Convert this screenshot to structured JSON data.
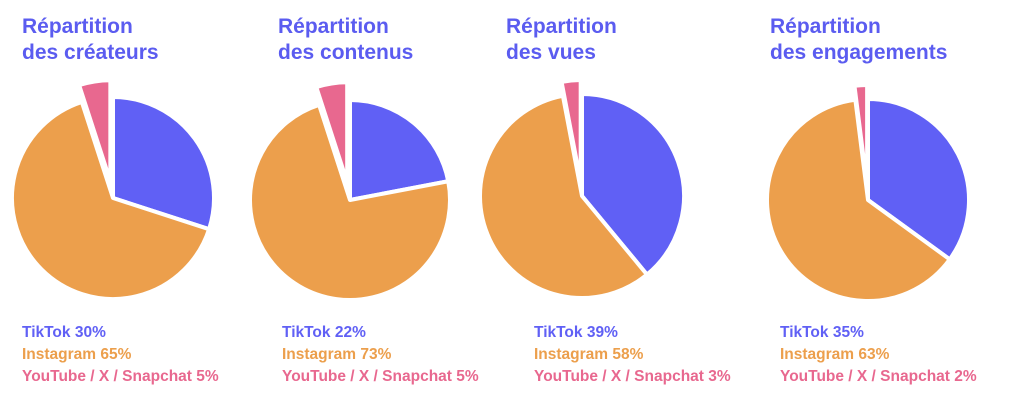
{
  "colors": {
    "tiktok": "#6060f5",
    "instagram": "#ec9f4c",
    "other": "#e8688f",
    "title": "#5b5cf0"
  },
  "chart_data": [
    {
      "type": "pie",
      "title_line1": "Répartition",
      "title_line2": "des créateurs",
      "slices": [
        {
          "name": "TikTok",
          "value": 30
        },
        {
          "name": "Instagram",
          "value": 65
        },
        {
          "name": "YouTube / X / Snapchat",
          "value": 5
        }
      ],
      "legend": [
        "TikTok 30%",
        "Instagram  65%",
        "YouTube / X / Snapchat 5%"
      ]
    },
    {
      "type": "pie",
      "title_line1": "Répartition",
      "title_line2": "des contenus",
      "slices": [
        {
          "name": "TikTok",
          "value": 22
        },
        {
          "name": "Instagram",
          "value": 73
        },
        {
          "name": "YouTube / X / Snapchat",
          "value": 5
        }
      ],
      "legend": [
        "TikTok 22%",
        "Instagram  73%",
        "YouTube / X / Snapchat 5%"
      ]
    },
    {
      "type": "pie",
      "title_line1": "Répartition",
      "title_line2": "des vues",
      "slices": [
        {
          "name": "TikTok",
          "value": 39
        },
        {
          "name": "Instagram",
          "value": 58
        },
        {
          "name": "YouTube / X / Snapchat",
          "value": 3
        }
      ],
      "legend": [
        "TikTok 39%",
        "Instagram  58%",
        "YouTube / X / Snapchat 3%"
      ]
    },
    {
      "type": "pie",
      "title_line1": "Répartition",
      "title_line2": "des engagements",
      "slices": [
        {
          "name": "TikTok",
          "value": 35
        },
        {
          "name": "Instagram",
          "value": 63
        },
        {
          "name": "YouTube / X / Snapchat",
          "value": 2
        }
      ],
      "legend": [
        "TikTok 35%",
        "Instagram  63%",
        "YouTube / X / Snapchat 2%"
      ]
    }
  ]
}
